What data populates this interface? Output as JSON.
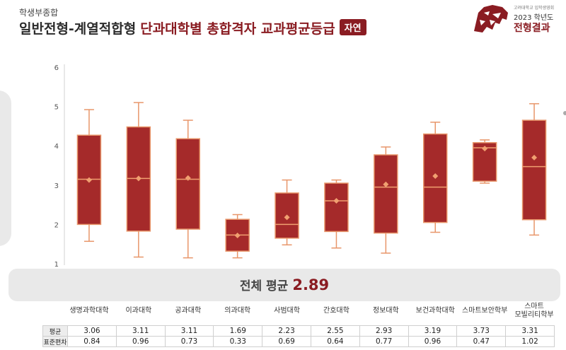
{
  "header": {
    "subtitle": "학생부종합",
    "title_main": "일반전형-계열적합형",
    "title_accent": "단과대학별 총합격자 교과평균등급",
    "badge": "자연"
  },
  "logo": {
    "icon": "tiger-icon",
    "small_text": "고려대학교 입학생영회",
    "year_text": "2023 학년도",
    "result_text": "전형결과"
  },
  "overall": {
    "label": "전체 평균",
    "value": "2.89"
  },
  "chart_data": {
    "type": "boxplot",
    "ylim": [
      1,
      6
    ],
    "yticks": [
      1,
      2,
      3,
      4,
      5,
      6
    ],
    "grid": false,
    "categories": [
      "생명과학대학",
      "이과대학",
      "공과대학",
      "의과대학",
      "사범대학",
      "간호대학",
      "정보대학",
      "보건과학대학",
      "스마트보안학부",
      "스마트 모빌리티학부"
    ],
    "boxes": [
      {
        "min": 1.57,
        "q1": 2.0,
        "median": 3.15,
        "q3": 4.27,
        "max": 4.92,
        "mean": 3.13
      },
      {
        "min": 1.17,
        "q1": 1.83,
        "median": 3.17,
        "q3": 4.48,
        "max": 5.1,
        "mean": 3.17
      },
      {
        "min": 1.15,
        "q1": 1.88,
        "median": 3.15,
        "q3": 4.18,
        "max": 4.65,
        "mean": 3.18
      },
      {
        "min": 1.15,
        "q1": 1.32,
        "median": 1.73,
        "q3": 2.13,
        "max": 2.25,
        "mean": 1.72
      },
      {
        "min": 1.48,
        "q1": 1.65,
        "median": 2.0,
        "q3": 2.8,
        "max": 3.13,
        "mean": 2.18
      },
      {
        "min": 1.4,
        "q1": 1.82,
        "median": 2.6,
        "q3": 3.05,
        "max": 3.13,
        "mean": 2.6
      },
      {
        "min": 1.27,
        "q1": 1.78,
        "median": 2.95,
        "q3": 3.77,
        "max": 3.97,
        "mean": 3.02
      },
      {
        "min": 1.8,
        "q1": 2.05,
        "median": 2.95,
        "q3": 4.3,
        "max": 4.6,
        "mean": 3.23
      },
      {
        "min": 3.05,
        "q1": 3.1,
        "median": 3.95,
        "q3": 4.08,
        "max": 4.15,
        "mean": 3.93
      },
      {
        "min": 1.73,
        "q1": 2.12,
        "median": 3.47,
        "q3": 4.65,
        "max": 5.07,
        "mean": 3.7
      }
    ],
    "colors": {
      "box_fill": "#a52a2a",
      "box_stroke": "#e8966a",
      "whisker": "#e8966a",
      "median": "#f0a070",
      "mean": "#f0a070"
    }
  },
  "table": {
    "rows": [
      {
        "label": "평균",
        "values": [
          "3.06",
          "3.11",
          "3.11",
          "1.69",
          "2.23",
          "2.55",
          "2.93",
          "3.19",
          "3.73",
          "3.31"
        ]
      },
      {
        "label": "표준편차",
        "values": [
          "0.84",
          "0.96",
          "0.73",
          "0.33",
          "0.69",
          "0.64",
          "0.77",
          "0.96",
          "0.47",
          "1.02"
        ]
      }
    ]
  }
}
